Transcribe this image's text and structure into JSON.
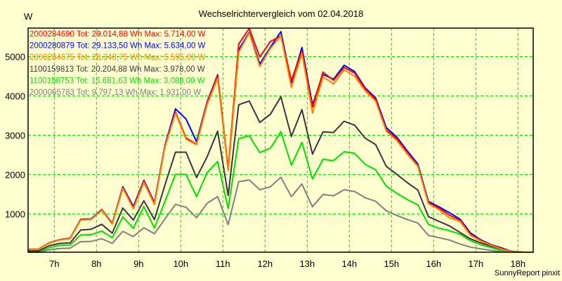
{
  "chart_data": {
    "type": "line",
    "title": "Wechselrichtervergleich vom 02.04.2018",
    "ylabel": "W",
    "xlabel": "",
    "footer": "SunnyReport pinxit",
    "xlim": [
      6.375,
      18.375
    ],
    "ylim": [
      0,
      5714
    ],
    "grid": true,
    "legend_placement": "top-left",
    "x_tick_values": [
      7,
      8,
      9,
      10,
      11,
      12,
      13,
      14,
      15,
      16,
      17,
      18
    ],
    "x_tick_labels": [
      "7h",
      "8h",
      "9h",
      "10h",
      "11h",
      "12h",
      "13h",
      "14h",
      "15h",
      "16h",
      "17h",
      "18h"
    ],
    "y_tick_values": [
      1000,
      2000,
      3000,
      4000,
      5000
    ],
    "y_tick_labels": [
      "1000",
      "2000",
      "3000",
      "4000",
      "5000"
    ],
    "x": [
      6.375,
      6.625,
      6.875,
      7.125,
      7.375,
      7.625,
      7.875,
      8.125,
      8.375,
      8.625,
      8.875,
      9.125,
      9.375,
      9.625,
      9.875,
      10.125,
      10.375,
      10.625,
      10.875,
      11.125,
      11.375,
      11.625,
      11.875,
      12.125,
      12.375,
      12.625,
      12.875,
      13.125,
      13.375,
      13.625,
      13.875,
      14.125,
      14.375,
      14.625,
      14.875,
      15.125,
      15.375,
      15.625,
      15.875,
      16.125,
      16.375,
      16.625,
      16.875,
      17.125,
      17.375,
      17.625,
      17.875,
      18.125,
      18.375
    ],
    "series": [
      {
        "name": "2000065783",
        "label": "2000065783 Tot: 9.797,13 Wh Max: 1.931,00 W",
        "color": "#808080",
        "values": [
          20,
          20,
          85,
          120,
          130,
          295,
          300,
          370,
          250,
          555,
          425,
          650,
          495,
          870,
          1245,
          1170,
          900,
          1270,
          1440,
          725,
          1820,
          1865,
          1615,
          1690,
          1931,
          1440,
          1760,
          1180,
          1495,
          1460,
          1615,
          1570,
          1410,
          1320,
          1080,
          960,
          855,
          770,
          455,
          395,
          335,
          235,
          155,
          110,
          70,
          40,
          20,
          10,
          10
        ]
      },
      {
        "name": "1100158753",
        "label": "1100158753 Tot: 15.681,63 Wh Max: 3.088,00 W",
        "color": "#00e000",
        "values": [
          35,
          35,
          140,
          200,
          210,
          465,
          475,
          565,
          395,
          925,
          635,
          1190,
          645,
          1320,
          2005,
          2005,
          1440,
          2050,
          2330,
          1140,
          2915,
          2985,
          2560,
          2670,
          3088,
          2240,
          2820,
          1890,
          2385,
          2355,
          2580,
          2540,
          2260,
          2120,
          1705,
          1525,
          1365,
          1230,
          735,
          635,
          575,
          485,
          320,
          215,
          140,
          70,
          30,
          10,
          10
        ]
      },
      {
        "name": "1100159813",
        "label": "1100159813 Tot: 20.204,88 Wh Max: 3.978,00 W",
        "color": "#403040",
        "values": [
          60,
          60,
          190,
          250,
          265,
          590,
          610,
          735,
          510,
          1150,
          845,
          1335,
          855,
          1735,
          2570,
          2570,
          1925,
          2450,
          3105,
          1470,
          3775,
          3870,
          3325,
          3530,
          3978,
          2970,
          3650,
          2520,
          3085,
          3070,
          3355,
          3255,
          2925,
          2760,
          2210,
          2005,
          1795,
          1605,
          930,
          810,
          695,
          530,
          365,
          260,
          175,
          100,
          50,
          15,
          15
        ]
      },
      {
        "name": "2000280879",
        "label": "2000280879 Tot: 29.133,50 Wh Max: 5.634,00 W",
        "color": "#0000ff",
        "values": [
          100,
          105,
          265,
          345,
          385,
          860,
          875,
          1110,
          760,
          1690,
          1190,
          1855,
          1290,
          2745,
          3670,
          3415,
          2835,
          3850,
          4540,
          2120,
          5170,
          5615,
          4810,
          5230,
          5634,
          4335,
          5230,
          3770,
          4545,
          4425,
          4780,
          4620,
          4205,
          3950,
          3195,
          2955,
          2600,
          2270,
          1320,
          1180,
          1030,
          870,
          515,
          335,
          215,
          130,
          40,
          20,
          20
        ]
      },
      {
        "name": "2000284690",
        "label": "2000284690 Tot: 29.014,88 Wh Max: 5.714,00 W",
        "color": "#ff0000",
        "values": [
          95,
          100,
          260,
          340,
          380,
          850,
          865,
          1100,
          750,
          1670,
          1150,
          1840,
          1260,
          2720,
          3590,
          2930,
          2770,
          3830,
          4515,
          2150,
          5320,
          5714,
          4990,
          5380,
          5525,
          4395,
          5140,
          3710,
          4605,
          4395,
          4725,
          4580,
          4175,
          3910,
          3135,
          2915,
          2555,
          2225,
          1290,
          1150,
          970,
          840,
          480,
          320,
          205,
          115,
          40,
          15,
          10
        ]
      },
      {
        "name": "2000284675",
        "label": "2000284675 Tot: 28.348,75 Wh Max: 5.595,00 W",
        "color": "#ff8000",
        "values": [
          95,
          100,
          255,
          335,
          375,
          845,
          860,
          1090,
          740,
          1650,
          1130,
          1800,
          1240,
          2700,
          3560,
          2900,
          2760,
          3780,
          4450,
          2100,
          5110,
          5595,
          4750,
          5200,
          5525,
          4215,
          5080,
          3560,
          4485,
          4305,
          4665,
          4500,
          4130,
          3865,
          3105,
          2865,
          2520,
          2210,
          1260,
          1110,
          900,
          810,
          455,
          305,
          200,
          100,
          40,
          20,
          20
        ]
      }
    ],
    "legend_order": [
      "2000284690",
      "2000280879",
      "2000284675",
      "1100159813",
      "1100158753",
      "2000065783"
    ]
  },
  "colors": {
    "background": "#ffffd0",
    "grid": "#00e000",
    "axis": "#000000"
  }
}
